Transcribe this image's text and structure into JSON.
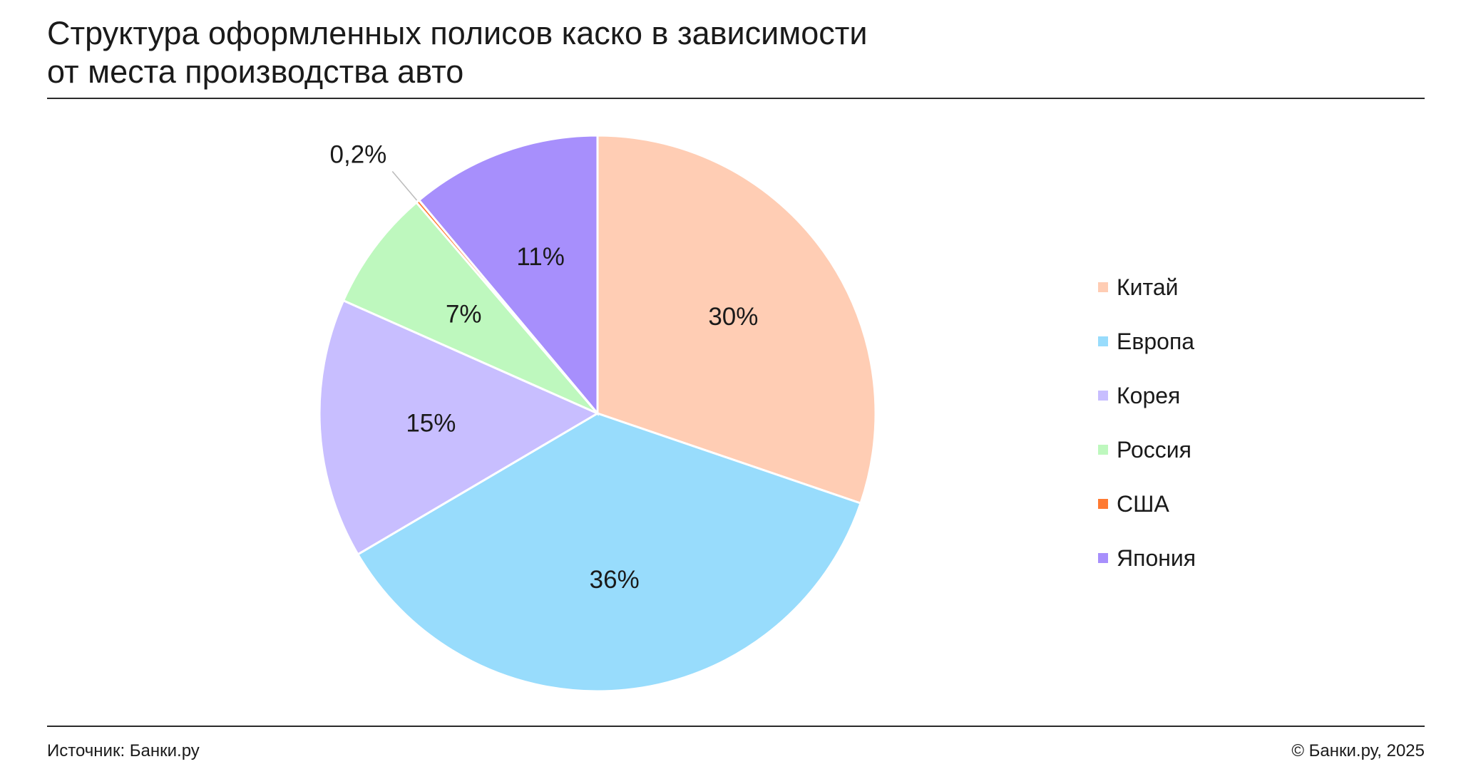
{
  "title_lines": [
    "Структура оформленных полисов каско в зависимости",
    "от места производства авто"
  ],
  "chart_data": {
    "type": "pie",
    "title": "Структура оформленных полисов каско в зависимости от места производства авто",
    "slices": [
      {
        "name": "Китай",
        "value": 30,
        "label": "30%",
        "color": "#FFCDB4"
      },
      {
        "name": "Европа",
        "value": 36,
        "label": "36%",
        "color": "#98DCFC"
      },
      {
        "name": "Корея",
        "value": 15,
        "label": "15%",
        "color": "#C8BEFF"
      },
      {
        "name": "Россия",
        "value": 7,
        "label": "7%",
        "color": "#BEF8BE"
      },
      {
        "name": "США",
        "value": 0.2,
        "label": "0,2%",
        "color": "#FF7A32"
      },
      {
        "name": "Япония",
        "value": 11,
        "label": "11%",
        "color": "#A78FFC"
      }
    ],
    "legend_position": "right"
  },
  "footer": {
    "source": "Источник: Банки.ру",
    "copyright": "© Банки.ру, 2025"
  }
}
